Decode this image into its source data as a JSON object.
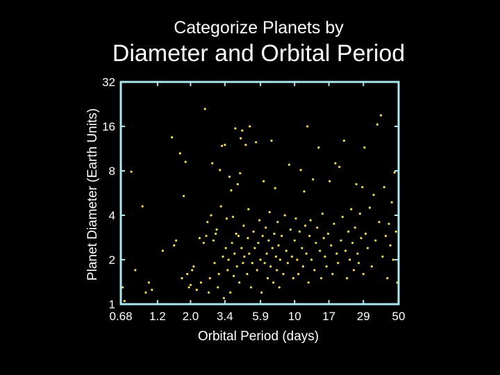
{
  "slide": {
    "title_line1": "Categorize Planets by",
    "title_line2": "Diameter and Orbital Period"
  },
  "colors": {
    "background": "#000000",
    "frame": "#a8e8ee",
    "points": "#f2dc5a",
    "text": "#ffffff"
  },
  "chart_data": {
    "type": "scatter",
    "title": "",
    "xlabel": "Orbital Period (days)",
    "ylabel": "Planet Diameter (Earth Units)",
    "x_scale": "log",
    "y_scale": "log",
    "xlim": [
      0.68,
      50
    ],
    "ylim": [
      1,
      32
    ],
    "x_ticks": [
      "0.68",
      "1.2",
      "2.0",
      "3.4",
      "5.9",
      "10",
      "17",
      "29",
      "50"
    ],
    "y_ticks": [
      "1",
      "2",
      "4",
      "8",
      "16",
      "32"
    ],
    "grid": false,
    "legend": "none",
    "points": [
      [
        0.7,
        1.3
      ],
      [
        0.72,
        1.05
      ],
      [
        0.8,
        7.9
      ],
      [
        0.85,
        1.7
      ],
      [
        0.95,
        4.6
      ],
      [
        1.0,
        1.2
      ],
      [
        1.05,
        1.4
      ],
      [
        1.1,
        1.25
      ],
      [
        1.3,
        2.3
      ],
      [
        1.45,
        1.0
      ],
      [
        1.5,
        13.5
      ],
      [
        1.55,
        2.5
      ],
      [
        1.6,
        2.7
      ],
      [
        1.7,
        10.5
      ],
      [
        1.75,
        1.5
      ],
      [
        1.8,
        5.4
      ],
      [
        1.85,
        9.2
      ],
      [
        1.9,
        1.6
      ],
      [
        1.95,
        1.3
      ],
      [
        2.0,
        1.35
      ],
      [
        2.05,
        1.7
      ],
      [
        2.1,
        1.8
      ],
      [
        2.2,
        1.25
      ],
      [
        2.3,
        2.8
      ],
      [
        2.35,
        1.4
      ],
      [
        2.45,
        2.6
      ],
      [
        2.5,
        21.0
      ],
      [
        2.55,
        2.9
      ],
      [
        2.6,
        3.6
      ],
      [
        2.65,
        1.2
      ],
      [
        2.7,
        1.5
      ],
      [
        2.75,
        4.0
      ],
      [
        2.8,
        9.0
      ],
      [
        2.85,
        2.7
      ],
      [
        2.9,
        1.9
      ],
      [
        2.95,
        3.0
      ],
      [
        3.0,
        3.2
      ],
      [
        3.05,
        1.3
      ],
      [
        3.1,
        1.6
      ],
      [
        3.15,
        8.1
      ],
      [
        3.2,
        4.6
      ],
      [
        3.25,
        11.8
      ],
      [
        3.3,
        2.1
      ],
      [
        3.35,
        1.1
      ],
      [
        3.4,
        12.0
      ],
      [
        3.45,
        2.4
      ],
      [
        3.5,
        3.8
      ],
      [
        3.55,
        1.7
      ],
      [
        3.6,
        2.0
      ],
      [
        3.65,
        7.3
      ],
      [
        3.7,
        1.2
      ],
      [
        3.75,
        5.9
      ],
      [
        3.8,
        2.6
      ],
      [
        3.85,
        3.9
      ],
      [
        3.9,
        1.55
      ],
      [
        3.95,
        2.2
      ],
      [
        4.0,
        15.5
      ],
      [
        4.05,
        3.0
      ],
      [
        4.1,
        1.8
      ],
      [
        4.15,
        6.5
      ],
      [
        4.2,
        2.9
      ],
      [
        4.25,
        1.4
      ],
      [
        4.3,
        7.7
      ],
      [
        4.35,
        13.3
      ],
      [
        4.4,
        2.4
      ],
      [
        4.45,
        15.0
      ],
      [
        4.5,
        1.9
      ],
      [
        4.55,
        3.4
      ],
      [
        4.6,
        2.1
      ],
      [
        4.7,
        12.0
      ],
      [
        4.8,
        1.6
      ],
      [
        4.85,
        2.8
      ],
      [
        4.9,
        4.4
      ],
      [
        4.95,
        2.2
      ],
      [
        5.0,
        16.0
      ],
      [
        5.1,
        1.3
      ],
      [
        5.2,
        1.9
      ],
      [
        5.3,
        3.1
      ],
      [
        5.4,
        2.4
      ],
      [
        5.5,
        12.5
      ],
      [
        5.6,
        1.7
      ],
      [
        5.7,
        2.6
      ],
      [
        5.8,
        3.7
      ],
      [
        5.9,
        2.0
      ],
      [
        6.0,
        1.2
      ],
      [
        6.1,
        2.9
      ],
      [
        6.2,
        6.8
      ],
      [
        6.3,
        1.9
      ],
      [
        6.4,
        3.3
      ],
      [
        6.5,
        2.2
      ],
      [
        6.6,
        1.5
      ],
      [
        6.7,
        2.7
      ],
      [
        6.8,
        4.2
      ],
      [
        6.9,
        1.8
      ],
      [
        7.0,
        12.8
      ],
      [
        7.1,
        2.4
      ],
      [
        7.2,
        1.4
      ],
      [
        7.3,
        3.0
      ],
      [
        7.4,
        6.1
      ],
      [
        7.5,
        2.1
      ],
      [
        7.6,
        1.7
      ],
      [
        7.7,
        3.6
      ],
      [
        7.8,
        2.5
      ],
      [
        7.9,
        1.3
      ],
      [
        8.0,
        2.0
      ],
      [
        8.2,
        2.9
      ],
      [
        8.4,
        1.6
      ],
      [
        8.6,
        4.0
      ],
      [
        8.8,
        2.3
      ],
      [
        9.0,
        1.9
      ],
      [
        9.2,
        8.8
      ],
      [
        9.4,
        3.2
      ],
      [
        9.6,
        2.1
      ],
      [
        9.8,
        1.5
      ],
      [
        10.0,
        2.7
      ],
      [
        10.2,
        3.8
      ],
      [
        10.4,
        2.0
      ],
      [
        10.6,
        1.6
      ],
      [
        10.8,
        3.1
      ],
      [
        11.0,
        8.1
      ],
      [
        11.2,
        2.4
      ],
      [
        11.4,
        1.8
      ],
      [
        11.6,
        5.8
      ],
      [
        11.8,
        3.4
      ],
      [
        12.0,
        2.2
      ],
      [
        12.2,
        16.0
      ],
      [
        12.4,
        1.4
      ],
      [
        12.6,
        2.9
      ],
      [
        12.8,
        3.7
      ],
      [
        13.0,
        2.0
      ],
      [
        13.3,
        7.0
      ],
      [
        13.6,
        1.7
      ],
      [
        13.9,
        2.6
      ],
      [
        14.2,
        3.3
      ],
      [
        14.5,
        11.5
      ],
      [
        14.8,
        2.3
      ],
      [
        15.1,
        1.5
      ],
      [
        15.4,
        4.1
      ],
      [
        15.7,
        2.8
      ],
      [
        16.0,
        2.1
      ],
      [
        16.4,
        1.8
      ],
      [
        16.8,
        3.0
      ],
      [
        17.2,
        6.8
      ],
      [
        17.6,
        2.5
      ],
      [
        18.0,
        1.6
      ],
      [
        18.4,
        3.5
      ],
      [
        18.8,
        9.0
      ],
      [
        19.2,
        2.2
      ],
      [
        19.6,
        1.9
      ],
      [
        20.0,
        8.5
      ],
      [
        20.5,
        2.7
      ],
      [
        21.0,
        3.9
      ],
      [
        21.5,
        12.8
      ],
      [
        22.0,
        2.3
      ],
      [
        22.5,
        1.5
      ],
      [
        23.0,
        3.1
      ],
      [
        23.5,
        2.0
      ],
      [
        24.0,
        4.4
      ],
      [
        24.5,
        2.6
      ],
      [
        25.0,
        1.7
      ],
      [
        25.5,
        3.3
      ],
      [
        26.0,
        6.5
      ],
      [
        26.5,
        2.2
      ],
      [
        27.0,
        1.9
      ],
      [
        27.5,
        4.1
      ],
      [
        28.0,
        2.8
      ],
      [
        28.5,
        6.2
      ],
      [
        29.0,
        1.6
      ],
      [
        29.5,
        11.5
      ],
      [
        30.0,
        3.0
      ],
      [
        31.0,
        2.4
      ],
      [
        32.0,
        4.5
      ],
      [
        33.0,
        1.8
      ],
      [
        34.0,
        5.5
      ],
      [
        35.0,
        2.7
      ],
      [
        36.0,
        16.5
      ],
      [
        37.0,
        3.6
      ],
      [
        38.0,
        19.0
      ],
      [
        39.0,
        2.1
      ],
      [
        40.0,
        6.2
      ],
      [
        41.0,
        2.9
      ],
      [
        42.0,
        1.5
      ],
      [
        43.0,
        3.5
      ],
      [
        44.0,
        2.5
      ],
      [
        45.0,
        4.9
      ],
      [
        46.0,
        2.0
      ],
      [
        47.0,
        7.8
      ],
      [
        48.0,
        3.1
      ],
      [
        49.0,
        1.4
      ],
      [
        50.0,
        3.9
      ]
    ]
  }
}
